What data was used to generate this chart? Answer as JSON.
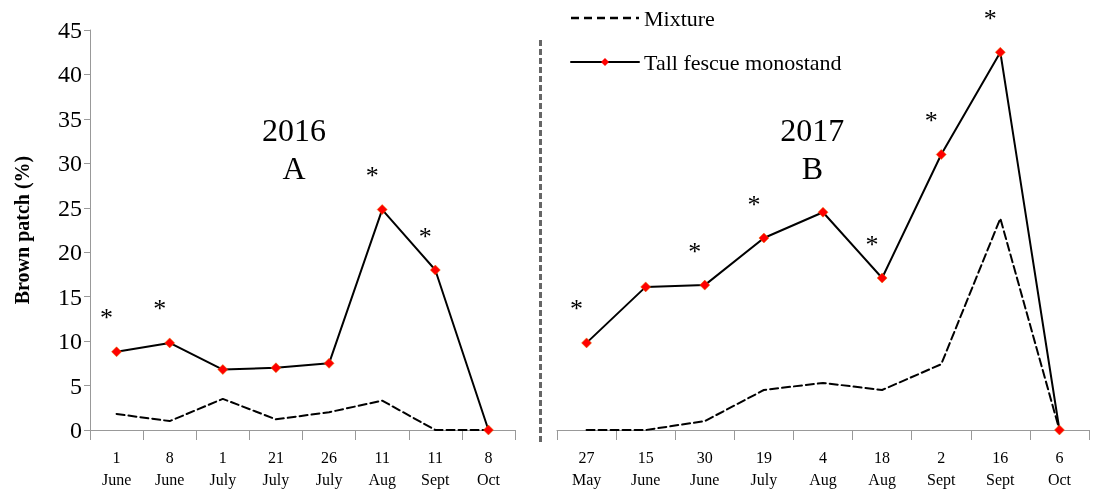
{
  "chart_data": [
    {
      "type": "line",
      "ylabel": "Brown patch (%)",
      "categories": [
        "1 June",
        "8 June",
        "1 July",
        "21 July",
        "26 July",
        "11 Aug",
        "11 Sept",
        "8 Oct"
      ],
      "series": [
        {
          "color": "#000000",
          "line_style": "dashed",
          "marker": "none",
          "values": [
            1.8,
            1.0,
            3.5,
            1.2,
            2.0,
            3.3,
            0,
            0
          ]
        },
        {
          "color": "#000000",
          "line_style": "solid",
          "marker": "diamond",
          "colors": [
            "#ff0000",
            "#ff0000",
            "#ff0000",
            "#ff0000",
            "#ff0000",
            "#ff0000",
            "#ff0000",
            "#ff0000"
          ],
          "values": [
            8.8,
            9.8,
            6.8,
            7.0,
            7.5,
            24.8,
            18.0,
            0
          ]
        }
      ],
      "ylim": [
        0,
        45
      ],
      "yticks": [
        0,
        5,
        10,
        15,
        20,
        25,
        30,
        35,
        40,
        45
      ],
      "grid": false,
      "legend": false,
      "annotations": [
        "2016",
        "A",
        {
          "text": "*",
          "x": "1 June",
          "y": 8.8
        },
        {
          "text": "*",
          "x": "8 June",
          "y": 9.8
        },
        {
          "text": "*",
          "x": "11 Aug",
          "y": 24.8
        },
        {
          "text": "*",
          "x": "11 Sept",
          "y": 18.0
        }
      ]
    },
    {
      "type": "line",
      "categories": [
        "27 May",
        "15 June",
        "30 June",
        "19 July",
        "4 Aug",
        "18 Aug",
        "2 Sept",
        "16 Sept",
        "6 Oct"
      ],
      "series": [
        {
          "name": "Mixture",
          "color": "#000000",
          "line_style": "dashed",
          "marker": "none",
          "values": [
            0,
            0,
            1.0,
            4.5,
            5.3,
            4.5,
            7.4,
            23.8,
            0
          ]
        },
        {
          "name": "Tall fescue monostand",
          "color": "#000000",
          "line_style": "solid",
          "marker": "diamond",
          "colors": [
            "#ff0000",
            "#ff0000",
            "#ff0000",
            "#ff0000",
            "#ff0000",
            "#ff0000",
            "#ff0000",
            "#ff0000",
            "#ff0000"
          ],
          "values": [
            9.8,
            16.1,
            16.3,
            21.6,
            24.5,
            17.1,
            31.0,
            42.5,
            0
          ]
        }
      ],
      "ylim": [
        0,
        45
      ],
      "yticks": [
        0,
        5,
        10,
        15,
        20,
        25,
        30,
        35,
        40,
        45
      ],
      "tick_labels": "x",
      "grid": false,
      "legend": "top left",
      "annotations": [
        "2017",
        "B",
        {
          "text": "*",
          "x": "27 May",
          "y": 9.8
        },
        {
          "text": "*",
          "x": "30 June",
          "y": 16.3
        },
        {
          "text": "*",
          "x": "19 July",
          "y": 21.6
        },
        {
          "text": "*",
          "x": "18 Aug",
          "y": 17.1
        },
        {
          "text": "*",
          "x": "2 Sept",
          "y": 31.0
        },
        {
          "text": "*",
          "x": "16 Sept",
          "y": 42.5
        }
      ]
    }
  ]
}
